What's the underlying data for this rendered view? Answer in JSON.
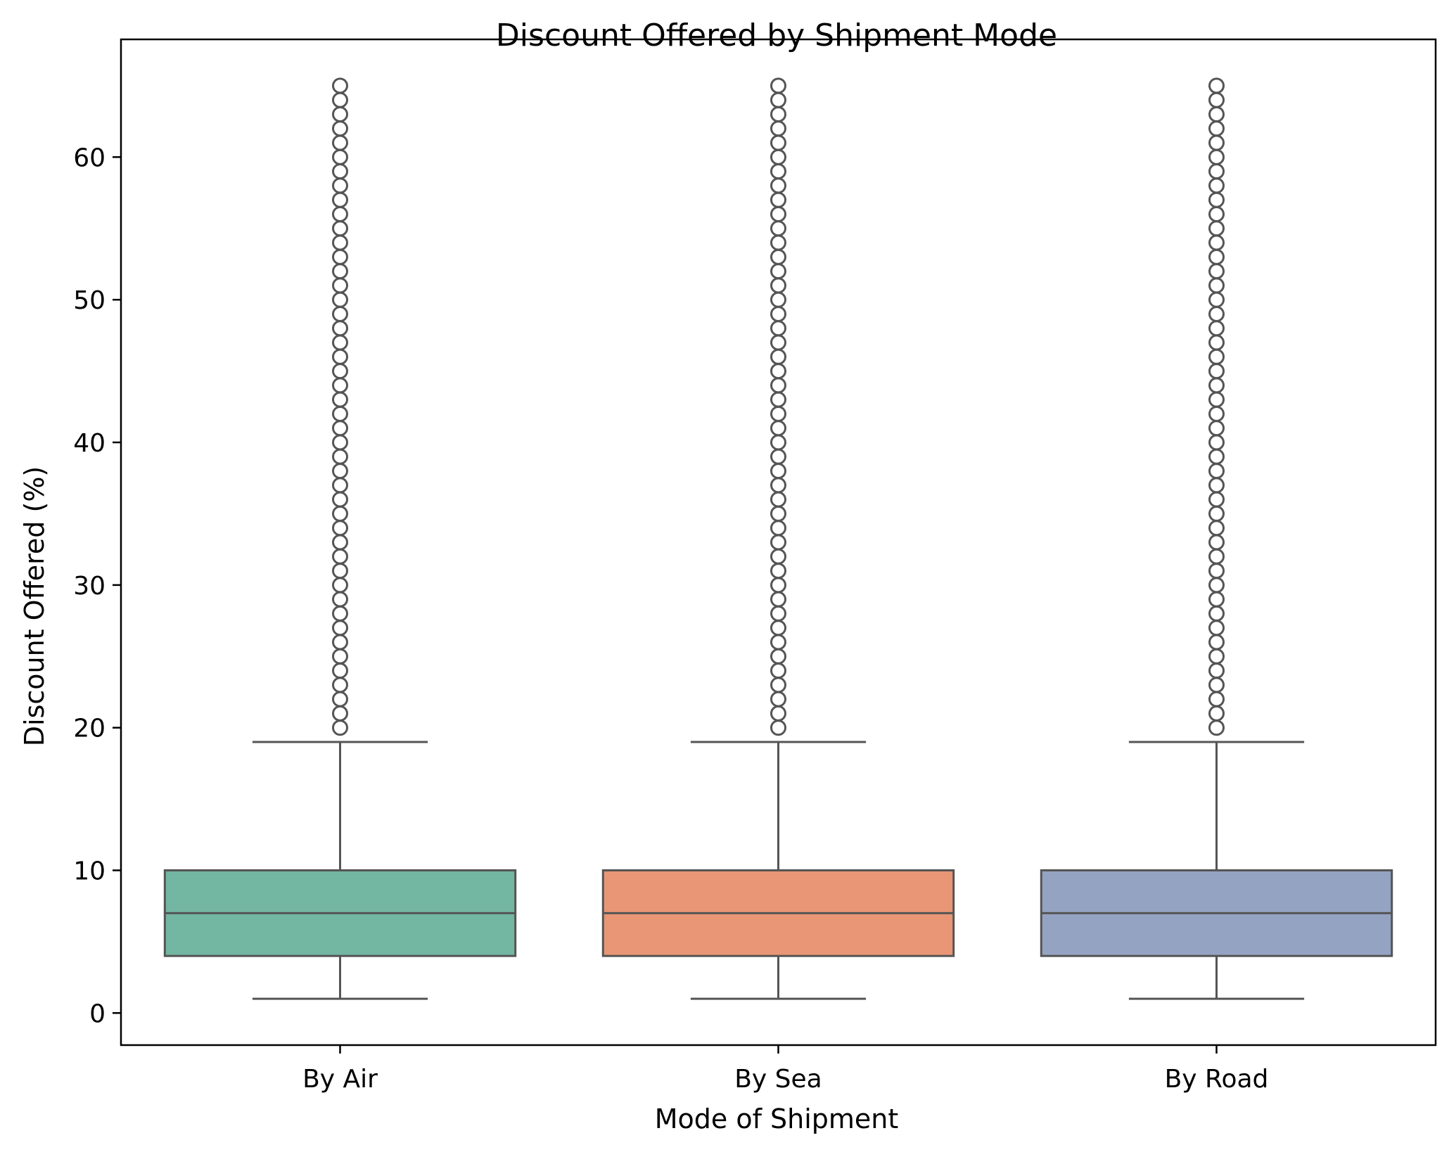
{
  "chart_data": {
    "type": "box",
    "title": "Discount Offered by Shipment Mode",
    "xlabel": "Mode of Shipment",
    "ylabel": "Discount Offered (%)",
    "ylim": [
      -2.25,
      68.25
    ],
    "yticks": [
      0,
      10,
      20,
      30,
      40,
      50,
      60
    ],
    "ytick_labels": [
      "0",
      "10",
      "20",
      "30",
      "40",
      "50",
      "60"
    ],
    "grid": false,
    "legend": "none",
    "categories": [
      "By Air",
      "By Sea",
      "By Road"
    ],
    "boxes": [
      {
        "category": "By Air",
        "color": "#73b6a2",
        "whisker_low": 1,
        "q1": 4,
        "median": 7,
        "q3": 10,
        "whisker_high": 19,
        "outliers": [
          20,
          21,
          22,
          23,
          24,
          25,
          26,
          27,
          28,
          29,
          30,
          31,
          32,
          33,
          34,
          35,
          36,
          37,
          38,
          39,
          40,
          41,
          42,
          43,
          44,
          45,
          46,
          47,
          48,
          49,
          50,
          51,
          52,
          53,
          54,
          55,
          56,
          57,
          58,
          59,
          60,
          61,
          62,
          63,
          64,
          65
        ]
      },
      {
        "category": "By Sea",
        "color": "#e89675",
        "whisker_low": 1,
        "q1": 4,
        "median": 7,
        "q3": 10,
        "whisker_high": 19,
        "outliers": [
          20,
          21,
          22,
          23,
          24,
          25,
          26,
          27,
          28,
          29,
          30,
          31,
          32,
          33,
          34,
          35,
          36,
          37,
          38,
          39,
          40,
          41,
          42,
          43,
          44,
          45,
          46,
          47,
          48,
          49,
          50,
          51,
          52,
          53,
          54,
          55,
          56,
          57,
          58,
          59,
          60,
          61,
          62,
          63,
          64,
          65
        ]
      },
      {
        "category": "By Road",
        "color": "#95a3c3",
        "whisker_low": 1,
        "q1": 4,
        "median": 7,
        "q3": 10,
        "whisker_high": 19,
        "outliers": [
          20,
          21,
          22,
          23,
          24,
          25,
          26,
          27,
          28,
          29,
          30,
          31,
          32,
          33,
          34,
          35,
          36,
          37,
          38,
          39,
          40,
          41,
          42,
          43,
          44,
          45,
          46,
          47,
          48,
          49,
          50,
          51,
          52,
          53,
          54,
          55,
          56,
          57,
          58,
          59,
          60,
          61,
          62,
          63,
          64,
          65
        ]
      }
    ],
    "line_color": "#555555",
    "axis_color": "#000000"
  }
}
